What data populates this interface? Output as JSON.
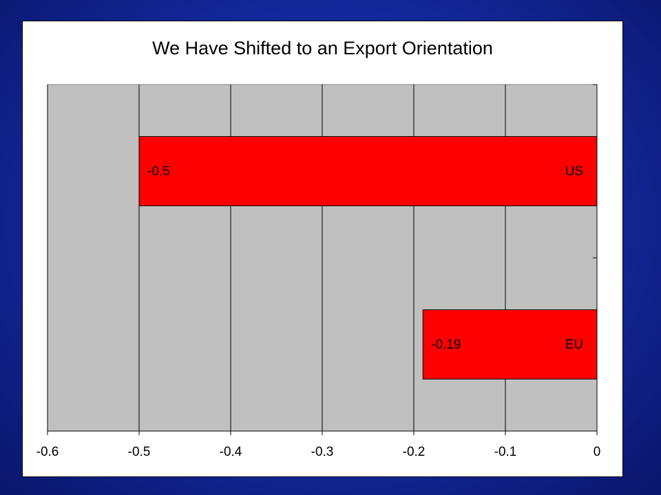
{
  "chart_data": {
    "type": "bar",
    "orientation": "horizontal",
    "title": "We Have Shifted to an Export Orientation",
    "categories": [
      "US",
      "EU"
    ],
    "values": [
      -0.5,
      -0.19
    ],
    "value_labels": [
      "-0.5",
      "-0.19"
    ],
    "xlim": [
      -0.6,
      0
    ],
    "x_ticks": [
      "-0.6",
      "-0.5",
      "-0.4",
      "-0.3",
      "-0.2",
      "-0.1",
      "0"
    ],
    "grid": true,
    "legend": "none",
    "colors": {
      "bar": "#ff0000",
      "plot_background": "#c0c0c0",
      "slide_background": "#13279a"
    }
  }
}
